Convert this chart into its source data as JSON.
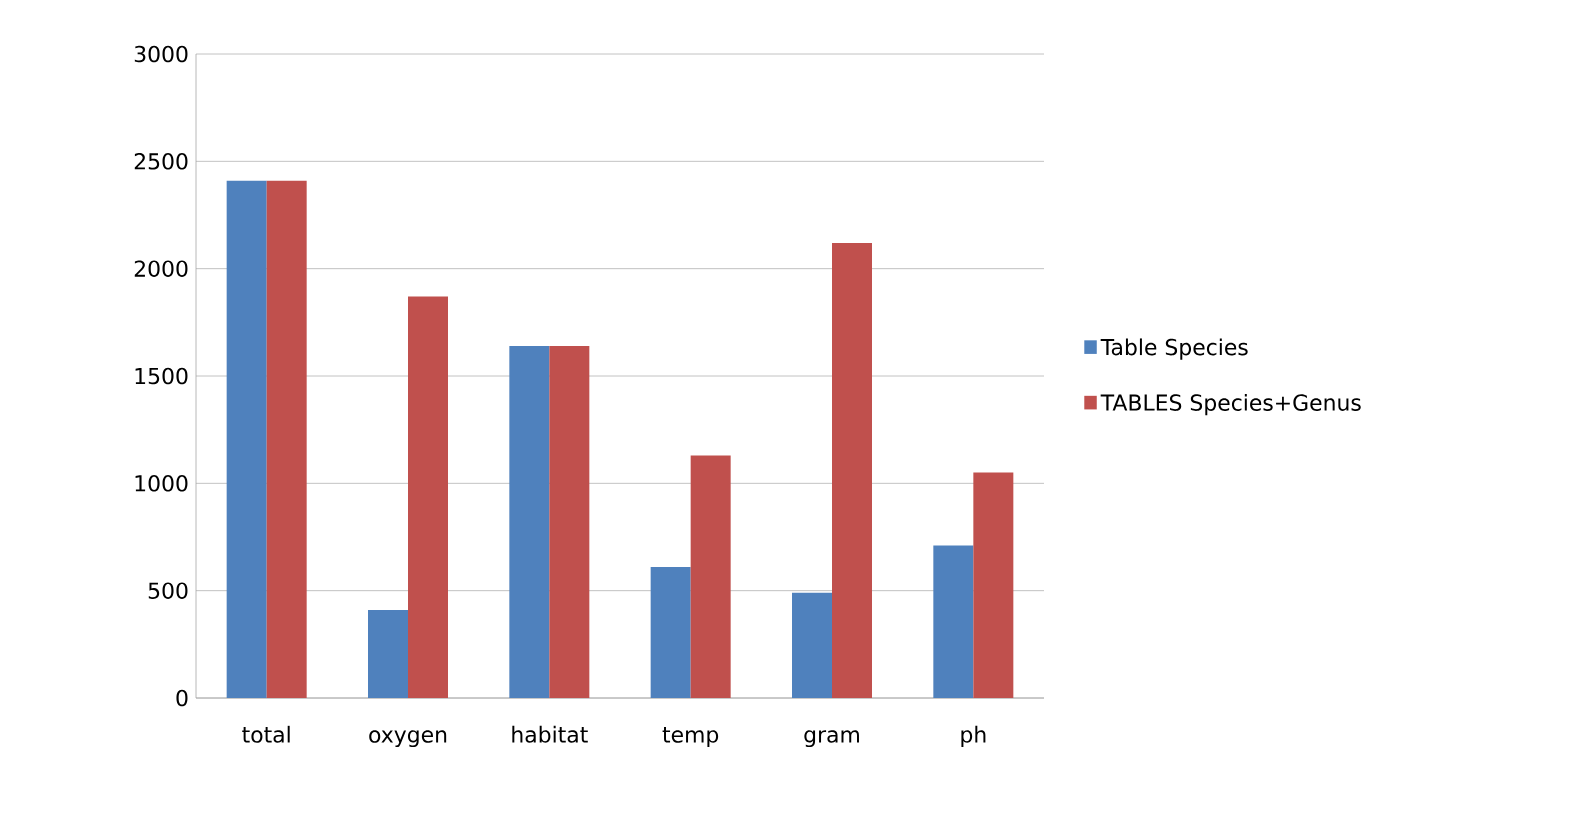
{
  "chart_data": {
    "type": "bar",
    "categories": [
      "total",
      "oxygen",
      "habitat",
      "temp",
      "gram",
      "ph"
    ],
    "series": [
      {
        "name": "Table Species",
        "color": "#4f81bd",
        "values": [
          2410,
          410,
          1640,
          610,
          490,
          710
        ]
      },
      {
        "name": "TABLES Species+Genus",
        "color": "#c0504d",
        "values": [
          2410,
          1870,
          1640,
          1130,
          2120,
          1050
        ]
      }
    ],
    "ylim": [
      0,
      3000
    ],
    "yticks": [
      0,
      500,
      1000,
      1500,
      2000,
      2500,
      3000
    ],
    "grid": "y",
    "legend": "right"
  }
}
